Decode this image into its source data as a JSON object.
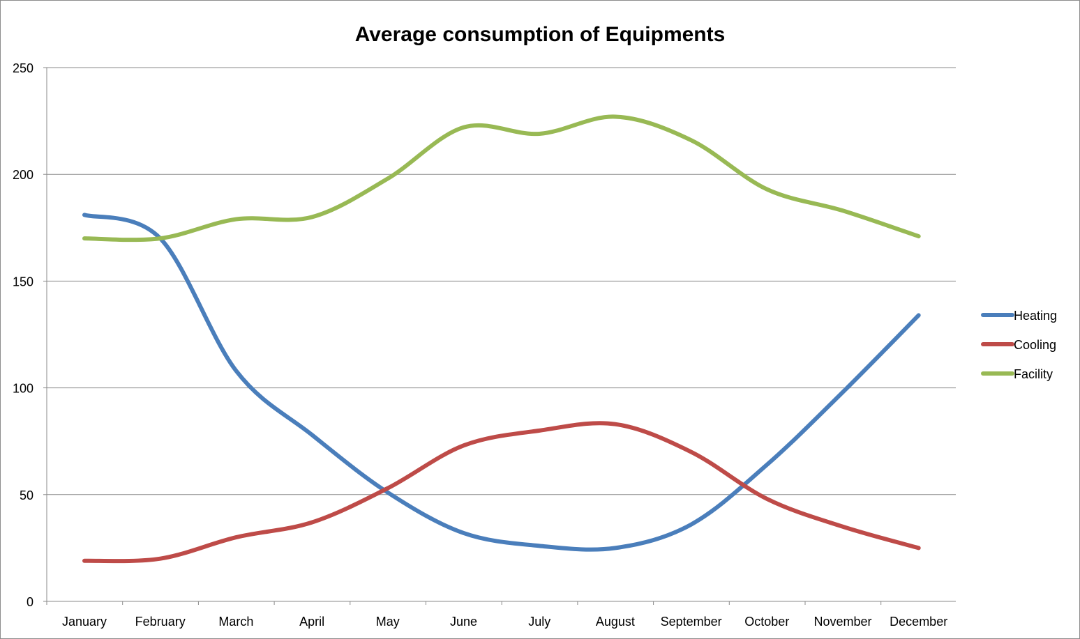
{
  "chart_data": {
    "type": "line",
    "title": "Average consumption of Equipments",
    "xlabel": "",
    "ylabel": "",
    "categories": [
      "January",
      "February",
      "March",
      "April",
      "May",
      "June",
      "July",
      "August",
      "September",
      "October",
      "November",
      "December"
    ],
    "ylim": [
      0,
      250
    ],
    "yticks": [
      0,
      50,
      100,
      150,
      200,
      250
    ],
    "ytick_labels": [
      "0",
      "50",
      "100",
      "150",
      "200",
      "250"
    ],
    "grid": true,
    "smooth": true,
    "legend_position": "right",
    "series": [
      {
        "name": "Heating",
        "color": "#4a7ebb",
        "values": [
          181,
          170,
          108,
          78,
          51,
          32,
          26,
          25,
          36,
          64,
          98,
          134
        ]
      },
      {
        "name": "Cooling",
        "color": "#be4b48",
        "values": [
          19,
          20,
          30,
          37,
          53,
          73,
          80,
          83,
          70,
          48,
          35,
          25
        ]
      },
      {
        "name": "Facility",
        "color": "#98b954",
        "values": [
          170,
          170,
          179,
          180,
          198,
          222,
          219,
          227,
          216,
          193,
          183,
          171
        ]
      }
    ]
  }
}
